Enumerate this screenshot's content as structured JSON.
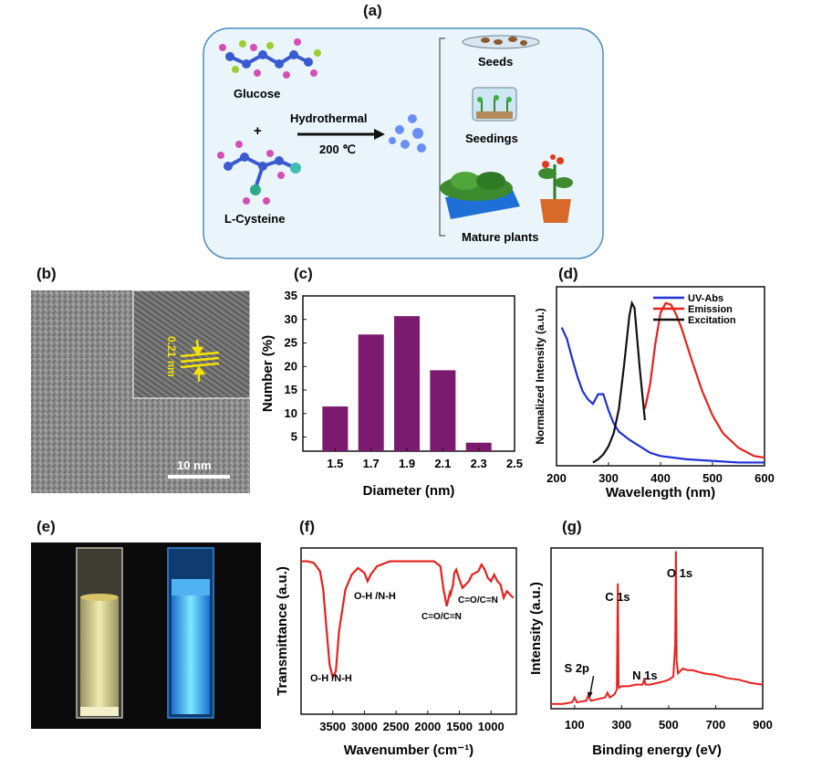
{
  "panels": {
    "a": {
      "label": "(a)",
      "glucose": "Glucose",
      "plus": "+",
      "cysteine": "L-Cysteine",
      "arrow_top": "Hydrothermal",
      "arrow_bottom": "200 ℃",
      "seeds": "Seeds",
      "seedings": "Seedings",
      "mature": "Mature plants"
    },
    "b": {
      "label": "(b)",
      "lattice": "0.21 nm",
      "scalebar": "10 nm"
    },
    "c": {
      "label": "(c)"
    },
    "d": {
      "label": "(d)"
    },
    "e": {
      "label": "(e)"
    },
    "f": {
      "label": "(f)",
      "ann_oh1": "O-H /N-H",
      "ann_oh2": "O-H /N-H",
      "ann_co1": "C=O/C=N",
      "ann_co2": "C=O/C=N"
    },
    "g": {
      "label": "(g)",
      "ann_o1s": "O 1s",
      "ann_c1s": "C 1s",
      "ann_n1s": "N 1s",
      "ann_s2p": "S 2p"
    }
  },
  "colors": {
    "purple_bar": "#7b1a6e",
    "uv_abs": "#1f2fd6",
    "emission": "#e8201c",
    "excitation": "#111111",
    "ftir": "#e8201c",
    "xps": "#e8201c",
    "scheme_bg": "#eaf5fb"
  },
  "chart_data": [
    {
      "id": "c",
      "type": "bar",
      "categories": [
        "1.5",
        "1.7",
        "1.9",
        "2.1",
        "2.3"
      ],
      "values": [
        11.5,
        26.8,
        30.7,
        19.2,
        3.8
      ],
      "xticks": [
        "1.5",
        "1.7",
        "1.9",
        "2.1",
        "2.3",
        "2.5"
      ],
      "yticks": [
        "5",
        "10",
        "15",
        "20",
        "25",
        "30",
        "35"
      ],
      "xlabel": "Diameter (nm)",
      "ylabel": "Number (%)",
      "ylim": [
        2,
        35
      ],
      "xlim": [
        1.32,
        2.5
      ]
    },
    {
      "id": "d",
      "type": "line",
      "xlabel": "Wavelength (nm)",
      "ylabel": "Normalized Intensity (a.u.)",
      "xticks": [
        "200",
        "300",
        "400",
        "500",
        "600"
      ],
      "xlim": [
        200,
        600
      ],
      "ylim": [
        0,
        1.1
      ],
      "legend": "top-right",
      "series": [
        {
          "name": "UV-Abs",
          "x": [
            210,
            220,
            230,
            240,
            250,
            260,
            270,
            280,
            290,
            300,
            310,
            320,
            340,
            360,
            380,
            400,
            450,
            500,
            550,
            600
          ],
          "y": [
            0.85,
            0.78,
            0.66,
            0.55,
            0.46,
            0.41,
            0.38,
            0.44,
            0.44,
            0.34,
            0.26,
            0.21,
            0.16,
            0.12,
            0.08,
            0.06,
            0.04,
            0.03,
            0.02,
            0.02
          ]
        },
        {
          "name": "Emission",
          "x": [
            370,
            380,
            390,
            400,
            410,
            420,
            430,
            440,
            460,
            480,
            500,
            520,
            550,
            580,
            600
          ],
          "y": [
            0.35,
            0.5,
            0.75,
            0.94,
            1.0,
            0.99,
            0.93,
            0.85,
            0.65,
            0.46,
            0.31,
            0.2,
            0.11,
            0.06,
            0.05
          ]
        },
        {
          "name": "Excitation",
          "x": [
            270,
            280,
            290,
            300,
            310,
            320,
            330,
            340,
            345,
            350,
            360,
            370
          ],
          "y": [
            0.02,
            0.04,
            0.07,
            0.12,
            0.2,
            0.35,
            0.62,
            0.92,
            1.0,
            0.97,
            0.6,
            0.28
          ]
        }
      ]
    },
    {
      "id": "f",
      "type": "line",
      "xlabel": "Wavenumber (cm⁻¹)",
      "ylabel": "Transmittance (a.u.)",
      "xticks": [
        "3500",
        "3000",
        "2500",
        "2000",
        "1500",
        "1000"
      ],
      "xlim": [
        4000,
        600
      ],
      "ylim": [
        0,
        1
      ],
      "series": [
        {
          "x": [
            4000,
            3900,
            3800,
            3700,
            3650,
            3600,
            3550,
            3500,
            3450,
            3400,
            3300,
            3200,
            3100,
            3000,
            2950,
            2900,
            2800,
            2600,
            2400,
            2200,
            2000,
            1900,
            1800,
            1750,
            1700,
            1650,
            1640,
            1600,
            1580,
            1550,
            1500,
            1450,
            1400,
            1350,
            1300,
            1250,
            1200,
            1150,
            1100,
            1050,
            1000,
            950,
            900,
            850,
            800,
            750,
            700,
            650
          ],
          "y": [
            0.92,
            0.92,
            0.91,
            0.86,
            0.75,
            0.52,
            0.3,
            0.22,
            0.26,
            0.5,
            0.75,
            0.84,
            0.88,
            0.85,
            0.8,
            0.84,
            0.89,
            0.92,
            0.92,
            0.92,
            0.92,
            0.92,
            0.89,
            0.75,
            0.65,
            0.73,
            0.72,
            0.78,
            0.85,
            0.87,
            0.81,
            0.76,
            0.78,
            0.8,
            0.84,
            0.85,
            0.86,
            0.9,
            0.87,
            0.82,
            0.8,
            0.84,
            0.8,
            0.78,
            0.7,
            0.74,
            0.72,
            0.7
          ]
        }
      ]
    },
    {
      "id": "g",
      "type": "line",
      "xlabel": "Binding energy (eV)",
      "ylabel": "Intensity (a.u.)",
      "xticks": [
        "100",
        "300",
        "500",
        "700",
        "900"
      ],
      "xlim": [
        0,
        900
      ],
      "ylim": [
        0,
        1
      ],
      "series": [
        {
          "x": [
            0,
            50,
            90,
            100,
            110,
            150,
            160,
            165,
            170,
            200,
            230,
            240,
            250,
            270,
            280,
            284,
            287,
            290,
            300,
            330,
            360,
            390,
            397,
            400,
            403,
            420,
            450,
            480,
            500,
            520,
            528,
            531,
            534,
            540,
            560,
            580,
            600,
            650,
            700,
            750,
            800,
            850,
            900
          ],
          "y": [
            0.03,
            0.03,
            0.04,
            0.07,
            0.04,
            0.05,
            0.09,
            0.06,
            0.05,
            0.06,
            0.07,
            0.1,
            0.07,
            0.09,
            0.12,
            0.78,
            0.14,
            0.13,
            0.14,
            0.14,
            0.15,
            0.15,
            0.19,
            0.16,
            0.15,
            0.15,
            0.16,
            0.17,
            0.18,
            0.2,
            0.4,
            0.98,
            0.3,
            0.22,
            0.25,
            0.24,
            0.24,
            0.22,
            0.21,
            0.19,
            0.18,
            0.16,
            0.15
          ]
        }
      ]
    }
  ]
}
